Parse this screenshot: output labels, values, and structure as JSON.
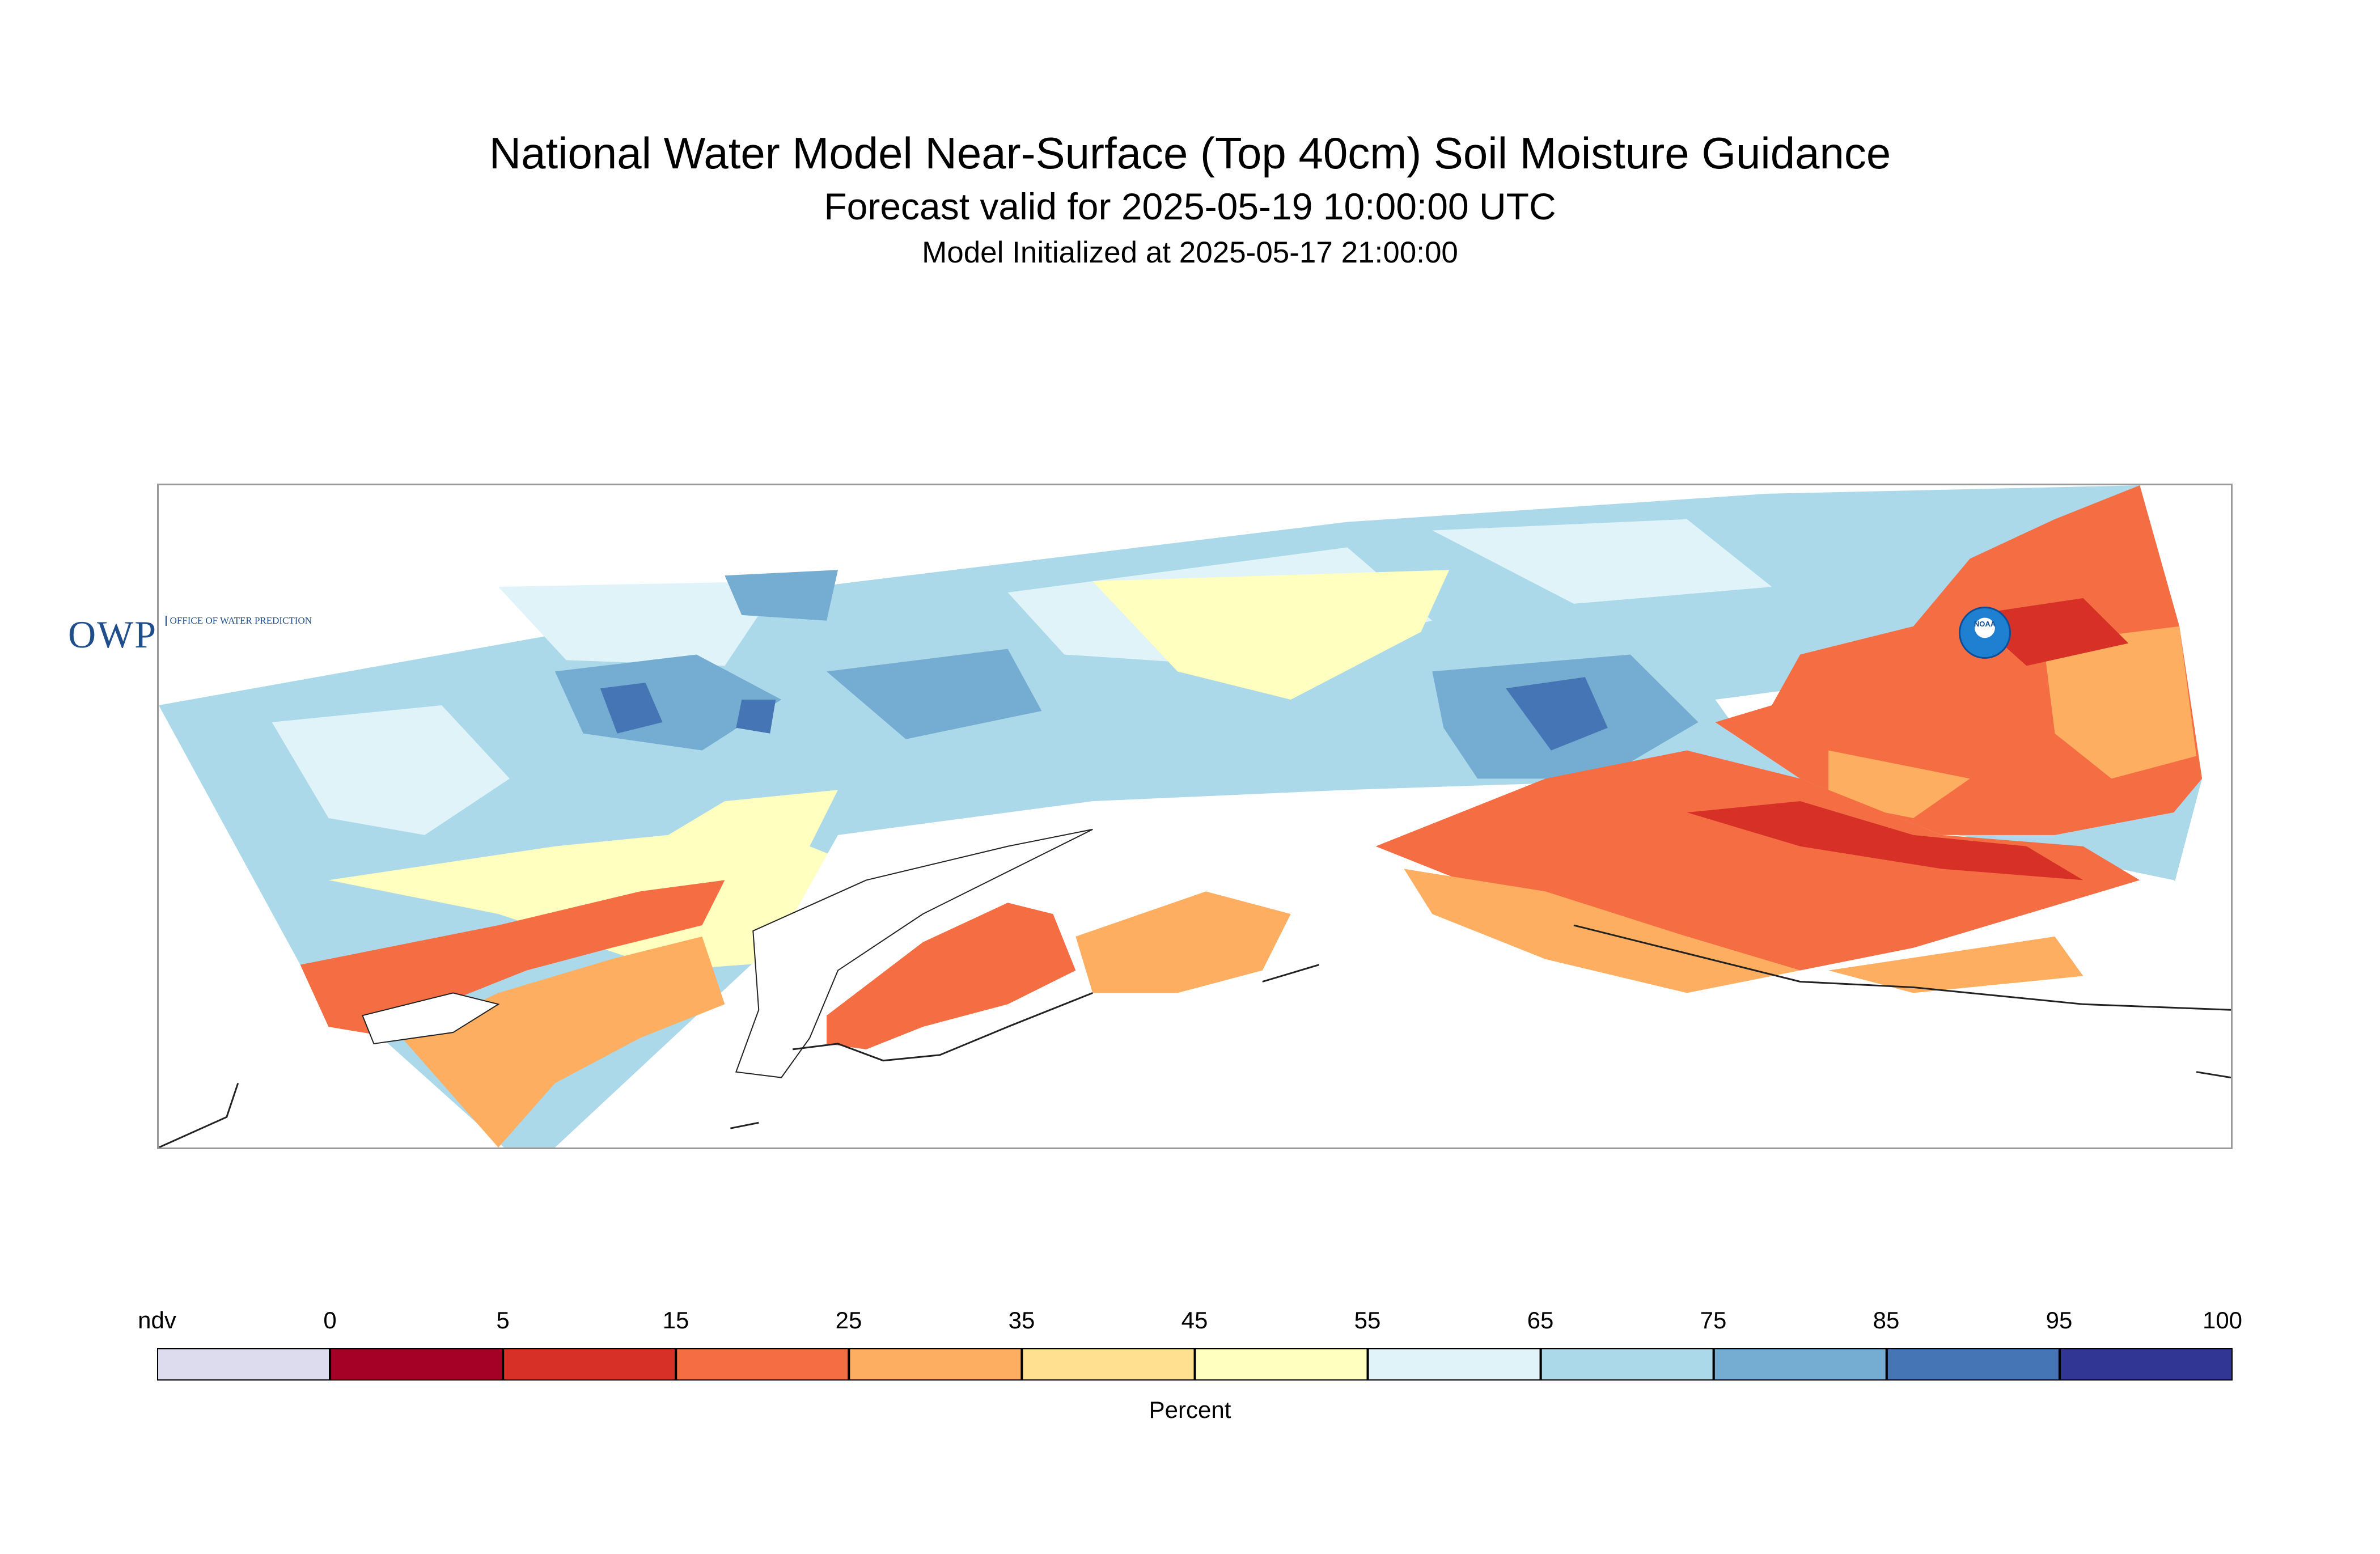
{
  "title": "National Water Model Near-Surface (Top 40cm) Soil Moisture Guidance",
  "subtitle": "Forecast valid for 2025-05-19 10:00:00 UTC",
  "init_line": "Model Initialized at 2025-05-17 21:00:00",
  "logo_owp": {
    "big": "OWP",
    "small": "OFFICE OF WATER PREDICTION"
  },
  "logo_noaa": "NOAA",
  "legend": {
    "unit": "Percent",
    "ndv_label": "ndv",
    "ticks": [
      "0",
      "5",
      "15",
      "25",
      "35",
      "45",
      "55",
      "65",
      "75",
      "85",
      "95",
      "100"
    ],
    "colors": [
      "#dcdcee",
      "#a50026",
      "#d73027",
      "#f46d43",
      "#fdae61",
      "#fee090",
      "#ffffbf",
      "#e0f3f8",
      "#abd9e9",
      "#74add1",
      "#4575b4",
      "#313695"
    ]
  }
}
